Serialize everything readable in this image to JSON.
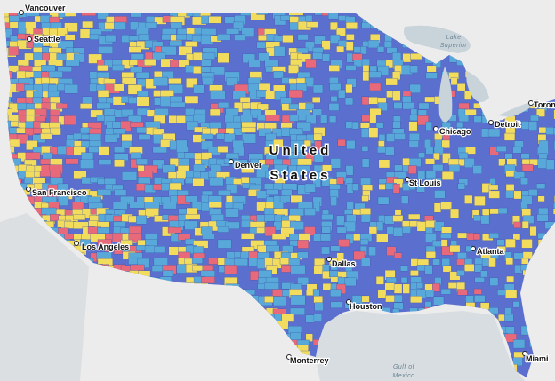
{
  "map": {
    "cities": [
      "Vancouver",
      "Seattle",
      "San Francisco",
      "Los Angeles",
      "Denver",
      "St Louis",
      "Chicago",
      "Detroit",
      "Toronto",
      "Dallas",
      "Atlanta",
      "Houston",
      "Monterrey",
      "Miami"
    ],
    "country": [
      "United",
      "States"
    ],
    "water": [
      "Lake",
      "Superior",
      "Gulf of",
      "Mexico"
    ]
  }
}
